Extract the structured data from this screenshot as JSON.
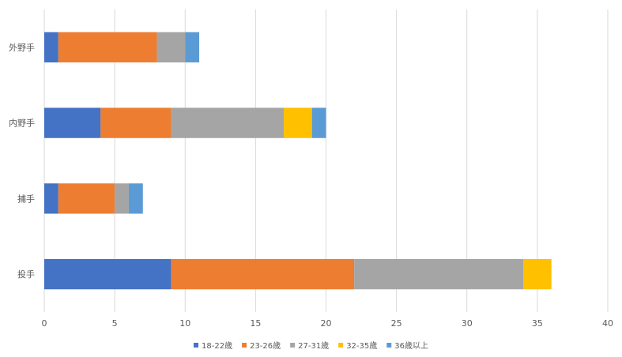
{
  "chart_data": {
    "type": "bar",
    "orientation": "horizontal",
    "stacked": true,
    "title": "",
    "xlabel": "",
    "ylabel": "",
    "xlim": [
      0,
      40
    ],
    "xticks": [
      "0",
      "5",
      "10",
      "15",
      "20",
      "25",
      "30",
      "35",
      "40"
    ],
    "grid": true,
    "legend_position": "bottom",
    "categories": [
      "外野手",
      "内野手",
      "捕手",
      "投手"
    ],
    "series": [
      {
        "name": "18-22歳",
        "color": "#4472c4",
        "values": [
          1,
          4,
          1,
          9
        ]
      },
      {
        "name": "23-26歳",
        "color": "#ed7d31",
        "values": [
          7,
          5,
          4,
          13
        ]
      },
      {
        "name": "27-31歳",
        "color": "#a5a5a5",
        "values": [
          2,
          8,
          1,
          12
        ]
      },
      {
        "name": "32-35歳",
        "color": "#ffc000",
        "values": [
          0,
          2,
          0,
          2
        ]
      },
      {
        "name": "36歳以上",
        "color": "#5b9bd5",
        "values": [
          1,
          1,
          1,
          0
        ]
      }
    ]
  }
}
